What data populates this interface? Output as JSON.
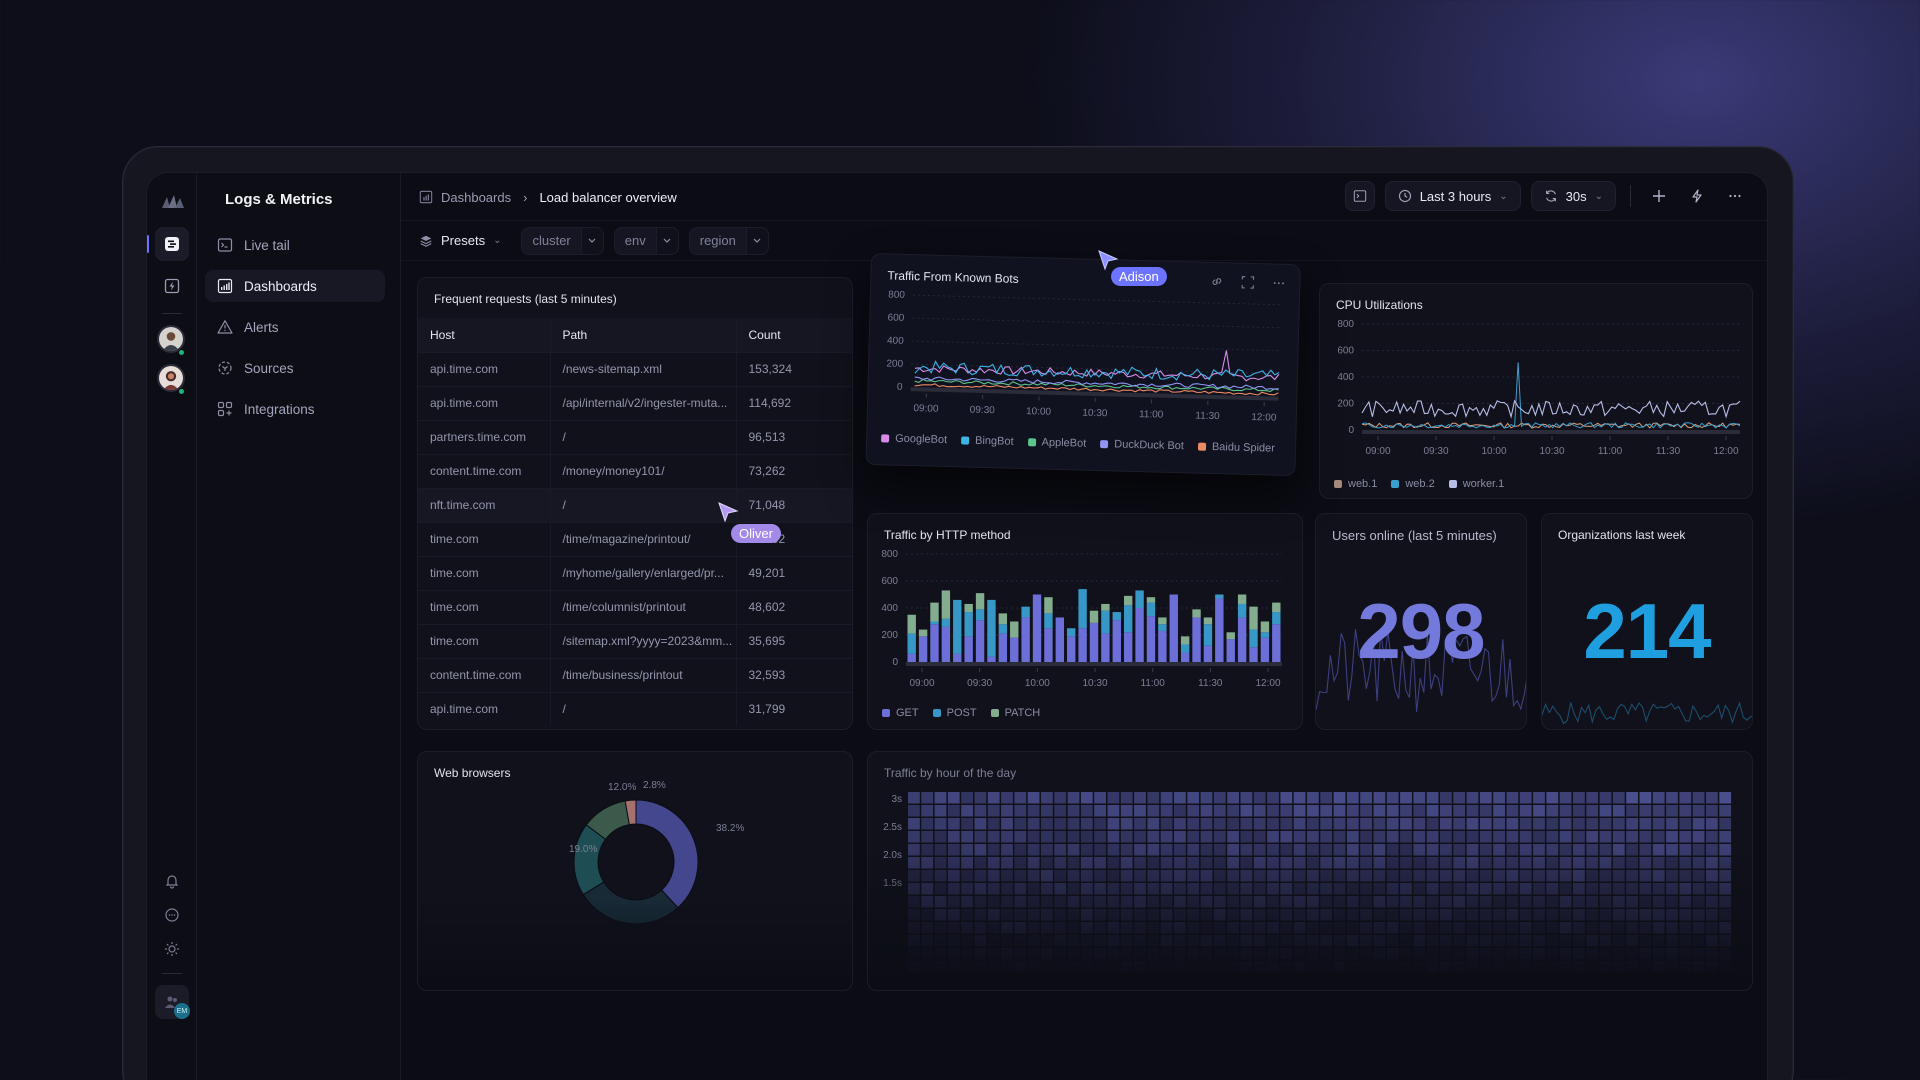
{
  "app": {
    "title": "Logs & Metrics"
  },
  "nav": {
    "items": [
      {
        "label": "Live tail",
        "icon": "terminal-icon"
      },
      {
        "label": "Dashboards",
        "icon": "bar-chart-icon",
        "active": true
      },
      {
        "label": "Alerts",
        "icon": "alert-triangle-icon"
      },
      {
        "label": "Sources",
        "icon": "sources-icon"
      },
      {
        "label": "Integrations",
        "icon": "integrations-icon"
      }
    ]
  },
  "rail": {
    "user_badge": "EM"
  },
  "breadcrumb": {
    "parent": "Dashboards",
    "current": "Load balancer overview"
  },
  "toolbar": {
    "time_range": "Last 3 hours",
    "refresh": "30s"
  },
  "filters": {
    "presets": "Presets",
    "chips": [
      "cluster",
      "env",
      "region"
    ]
  },
  "colors": {
    "accent": "#6b73ff",
    "googlebot": "#d78be6",
    "bingbot": "#3bb4e6",
    "applebot": "#5cc58a",
    "duckduck": "#8f95f5",
    "baidu": "#ec8a62",
    "get": "#6c6fd8",
    "post": "#3797c6",
    "patch": "#84ad8f",
    "web1": "#a88a7c",
    "web2": "#3aa0d0",
    "worker1": "#b8bde8",
    "users_online": "#7479dc",
    "orgs": "#1f9ee0"
  },
  "requests_table": {
    "title": "Frequent requests (last 5 minutes)",
    "columns": [
      "Host",
      "Path",
      "Count"
    ],
    "rows": [
      [
        "api.time.com",
        "/news-sitemap.xml",
        "153,324"
      ],
      [
        "api.time.com",
        "/api/internal/v2/ingester-muta...",
        "114,692"
      ],
      [
        "partners.time.com",
        "/",
        "96,513"
      ],
      [
        "content.time.com",
        "/money/money101/",
        "73,262"
      ],
      [
        "nft.time.com",
        "/",
        "71,048"
      ],
      [
        "time.com",
        "/time/magazine/printout/",
        "53.592"
      ],
      [
        "time.com",
        "/myhome/gallery/enlarged/pr...",
        "49,201"
      ],
      [
        "time.com",
        "/time/columnist/printout",
        "48,602"
      ],
      [
        "time.com",
        "/sitemap.xml?yyyy=2023&mm...",
        "35,695"
      ],
      [
        "content.time.com",
        "/time/business/printout",
        "32,593"
      ],
      [
        "api.time.com",
        "/",
        "31,799"
      ]
    ]
  },
  "cursors": [
    {
      "name": "Adison",
      "color": "#6b73ff"
    },
    {
      "name": "Oliver",
      "color": "#a48ae8"
    }
  ],
  "chart_data": [
    {
      "type": "line",
      "title": "Traffic From Known Bots",
      "yticks": [
        "800",
        "600",
        "400",
        "200",
        "0"
      ],
      "ylim": [
        0,
        800
      ],
      "xticks": [
        "09:00",
        "09:30",
        "10:00",
        "10:30",
        "11:00",
        "11:30",
        "12:00"
      ],
      "series": [
        {
          "name": "GoogleBot",
          "approx_range": [
            120,
            220
          ],
          "spike": 380
        },
        {
          "name": "BingBot",
          "approx_range": [
            120,
            230
          ]
        },
        {
          "name": "AppleBot",
          "approx_range": [
            40,
            80
          ]
        },
        {
          "name": "DuckDuck Bot",
          "approx_range": [
            60,
            100
          ]
        },
        {
          "name": "Baidu Spider",
          "approx_range": [
            10,
            40
          ]
        }
      ],
      "grid": true,
      "legend_position": "bottom"
    },
    {
      "type": "line",
      "title": "CPU Utilizations",
      "yticks": [
        "800",
        "600",
        "400",
        "200",
        "0"
      ],
      "ylim": [
        0,
        800
      ],
      "xticks": [
        "09:00",
        "09:30",
        "10:00",
        "10:30",
        "11:00",
        "11:30",
        "12:00"
      ],
      "series": [
        {
          "name": "web.1",
          "approx_range": [
            20,
            60
          ]
        },
        {
          "name": "web.2",
          "approx_range": [
            20,
            60
          ],
          "spike": 510
        },
        {
          "name": "worker.1",
          "approx_range": [
            100,
            230
          ]
        }
      ],
      "grid": true,
      "legend_position": "bottom"
    },
    {
      "type": "bar",
      "title": "Traffic by HTTP method",
      "stacked": true,
      "yticks": [
        "800",
        "600",
        "400",
        "200",
        "0"
      ],
      "ylim": [
        0,
        800
      ],
      "xticks": [
        "09:00",
        "09:30",
        "10:00",
        "10:30",
        "11:00",
        "11:30",
        "12:00"
      ],
      "series": [
        {
          "name": "GET",
          "values": [
            60,
            190,
            280,
            260,
            60,
            190,
            310,
            40,
            210,
            180,
            330,
            500,
            250,
            330,
            190,
            250,
            290,
            210,
            310,
            220,
            400,
            340,
            230,
            500,
            70,
            330,
            120,
            470,
            170,
            330,
            110,
            180,
            280
          ]
        },
        {
          "name": "POST",
          "values": [
            150,
            0,
            20,
            60,
            400,
            180,
            80,
            420,
            70,
            0,
            80,
            0,
            110,
            0,
            60,
            290,
            0,
            170,
            60,
            200,
            130,
            100,
            50,
            0,
            60,
            0,
            160,
            30,
            0,
            100,
            130,
            40,
            90
          ]
        },
        {
          "name": "PATCH",
          "values": [
            140,
            50,
            140,
            210,
            0,
            60,
            120,
            0,
            80,
            120,
            0,
            0,
            120,
            0,
            0,
            0,
            90,
            50,
            0,
            70,
            0,
            40,
            50,
            0,
            60,
            60,
            50,
            0,
            50,
            70,
            170,
            80,
            70
          ]
        }
      ],
      "legend_position": "bottom"
    },
    {
      "type": "pie",
      "title": "Web browsers",
      "labels_shown": [
        "38.2%",
        "19.0%",
        "12.0%",
        "2.8%"
      ],
      "values": [
        38.2,
        28.0,
        19.0,
        12.0,
        2.8
      ]
    },
    {
      "type": "heatmap",
      "title": "Traffic by hour of the day",
      "yticks": [
        "3s",
        "2.5s",
        "2.0s",
        "1.5s"
      ]
    }
  ],
  "stats": {
    "users_online": {
      "title": "Users online (last 5 minutes)",
      "value": "298"
    },
    "orgs": {
      "title": "Organizations last week",
      "value": "214"
    }
  }
}
